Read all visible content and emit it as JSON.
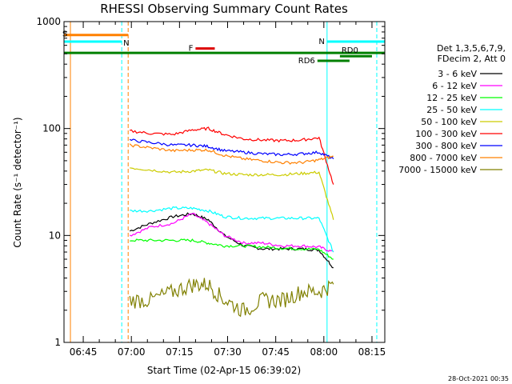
{
  "chart_data": {
    "type": "line",
    "title": "RHESSI Observing Summary Count Rates",
    "xlabel": "Start Time (02-Apr-15 06:39:02)",
    "ylabel": "Count Rate (s⁻¹ detector⁻¹)",
    "yscale": "log",
    "ylim": [
      1,
      1000
    ],
    "xlim_minutes": [
      0,
      100
    ],
    "x_ticks": [
      "06:45",
      "07:00",
      "07:15",
      "07:30",
      "07:45",
      "08:00",
      "08:15"
    ],
    "y_ticks": [
      "1",
      "10",
      "100",
      "1000"
    ],
    "grid": false,
    "legend_position": "right",
    "legend_header": [
      "Det 1,3,5,6,7,9,",
      "FDecim 2, Att 0"
    ],
    "series": [
      {
        "name": "3 - 6 keV",
        "color": "#000000",
        "values": [
          11,
          13,
          15,
          16,
          14,
          10,
          8,
          7.5,
          7.5,
          7.5,
          7.3,
          5
        ]
      },
      {
        "name": "6 - 12 keV",
        "color": "#ff00ff",
        "values": [
          10,
          12,
          13,
          16,
          13,
          10,
          8.5,
          8.5,
          8,
          8,
          7.8,
          7
        ]
      },
      {
        "name": "12 - 25 keV",
        "color": "#00ff00",
        "values": [
          9,
          9,
          9,
          9,
          8.5,
          8,
          8,
          7.8,
          7.6,
          7.5,
          7.4,
          6
        ]
      },
      {
        "name": "25 - 50 keV",
        "color": "#00ffff",
        "values": [
          17,
          17,
          18,
          18,
          17,
          15,
          14.5,
          14.5,
          14.5,
          14.5,
          14.5,
          7
        ]
      },
      {
        "name": "50 - 100 keV",
        "color": "#cccc00",
        "values": [
          43,
          41,
          39,
          40,
          41,
          38,
          37,
          37,
          37,
          38,
          39,
          14
        ]
      },
      {
        "name": "100 - 300 keV",
        "color": "#ff0000",
        "values": [
          95,
          90,
          88,
          97,
          100,
          88,
          80,
          78,
          77,
          78,
          82,
          30
        ]
      },
      {
        "name": "300 - 800 keV",
        "color": "#0000ff",
        "values": [
          78,
          74,
          70,
          70,
          68,
          62,
          60,
          58,
          57,
          58,
          60,
          52
        ]
      },
      {
        "name": "800 - 7000 keV",
        "color": "#ff8000",
        "values": [
          70,
          66,
          62,
          63,
          63,
          56,
          52,
          50,
          48,
          48,
          51,
          55
        ]
      },
      {
        "name": "7000 - 15000 keV",
        "color": "#808000",
        "values": [
          2.5,
          2.5,
          3,
          3.5,
          3.5,
          2.5,
          2,
          2.5,
          2.5,
          3,
          3,
          3.5
        ]
      }
    ],
    "x_minutes": [
      20.5,
      27,
      34,
      40,
      45,
      50,
      56,
      62,
      68,
      74,
      79.5,
      84
    ],
    "flag_lines": [
      {
        "label": "S",
        "color": "#ff8000",
        "y": 750,
        "x_start": 0,
        "x_end": 20
      },
      {
        "label": "N",
        "color": "#00ffff",
        "y": 650,
        "x_start": 0,
        "x_end": 18
      },
      {
        "label": "N",
        "color": "#00ffff",
        "y": 650,
        "x_start": 82,
        "x_end": 100
      },
      {
        "label": "",
        "color": "#008000",
        "y": 510,
        "x_start": 0,
        "x_end": 100
      },
      {
        "label": "F",
        "color": "#dd0000",
        "y": 560,
        "x_start": 41,
        "x_end": 47
      },
      {
        "label": "RD0",
        "color": "#008000",
        "y": 475,
        "x_start": 86,
        "x_end": 96
      },
      {
        "label": "RD6",
        "color": "#008000",
        "y": 430,
        "x_start": 79,
        "x_end": 89
      }
    ],
    "vertical_markers": [
      {
        "x": 2,
        "color": "#ff8000",
        "style": "solid"
      },
      {
        "x": 18,
        "color": "#00ffff",
        "style": "dashed"
      },
      {
        "x": 20,
        "color": "#ff8000",
        "style": "dashed"
      },
      {
        "x": 82,
        "color": "#00ffff",
        "style": "solid"
      },
      {
        "x": 97.5,
        "color": "#00ffff",
        "style": "dashed"
      }
    ],
    "timestamp": "28-Oct-2021 00:35"
  }
}
